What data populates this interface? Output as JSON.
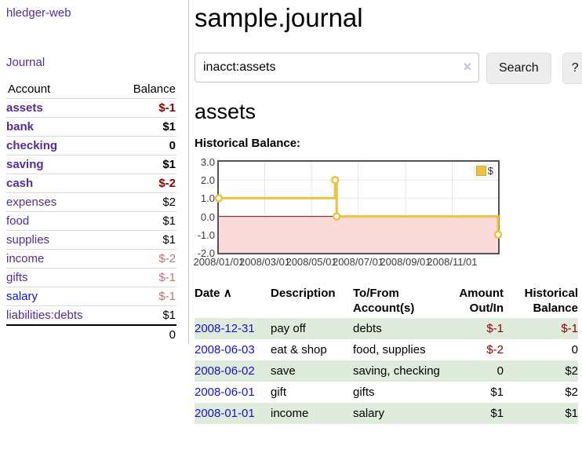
{
  "app": {
    "title": "hledger-web",
    "accent_purple": "#542d96",
    "link_blue": "#1313d2",
    "negative_red": "#8b0000",
    "dimmed_negative_red": "#b87474",
    "row_stripe_green": "#dfecdb"
  },
  "sidebar": {
    "journal_link": "Journal",
    "accounts_table": {
      "account_header": "Account",
      "balance_header": "Balance",
      "rows": [
        {
          "name": "assets",
          "balance": "$-1"
        },
        {
          "name": "bank",
          "balance": "$1"
        },
        {
          "name": "checking",
          "balance": "0"
        },
        {
          "name": "saving",
          "balance": "$1"
        },
        {
          "name": "cash",
          "balance": "$-2"
        },
        {
          "name": "expenses",
          "balance": "$2"
        },
        {
          "name": "food",
          "balance": "$1"
        },
        {
          "name": "supplies",
          "balance": "$1"
        },
        {
          "name": "income",
          "balance": "$-2"
        },
        {
          "name": "gifts",
          "balance": "$-1"
        },
        {
          "name": "salary",
          "balance": "$-1"
        },
        {
          "name": "liabilities:debts",
          "balance": "$1"
        }
      ],
      "total": "0"
    }
  },
  "main": {
    "title": "sample.journal",
    "search": {
      "value": "inacct:assets",
      "clear_icon": "×",
      "search_button": "Search",
      "help_button": "?"
    },
    "account_heading": "assets",
    "chart_title": "Historical Balance:"
  },
  "chart_data": {
    "type": "line",
    "step": true,
    "title": "Historical Balance",
    "series": [
      {
        "name": "$",
        "color": "#EDC240",
        "points": [
          {
            "date": "2008-01-01",
            "day": 0,
            "value": 1
          },
          {
            "date": "2008-06-01",
            "day": 152,
            "value": 2
          },
          {
            "date": "2008-06-03",
            "day": 154,
            "value": 0
          },
          {
            "date": "2008-12-31",
            "day": 365,
            "value": -1
          }
        ]
      }
    ],
    "ylim": [
      -2.0,
      3.0
    ],
    "yticks": [
      "3.0",
      "2.0",
      "1.0",
      "0.0",
      "-1.0",
      "-2.0"
    ],
    "xticks": [
      {
        "label": "2008/01/01",
        "day": 0
      },
      {
        "label": "2008/03/01",
        "day": 60
      },
      {
        "label": "2008/05/01",
        "day": 121
      },
      {
        "label": "2008/07/01",
        "day": 182
      },
      {
        "label": "2008/09/01",
        "day": 244
      },
      {
        "label": "2008/11/01",
        "day": 305
      }
    ],
    "x_span_days": 365,
    "legend": {
      "label": "$",
      "position": "top-right"
    },
    "grid": true,
    "colors": {
      "grid": "#e6e6e6",
      "plot_border": "#545454",
      "negative_region": "#fbdada",
      "zero_line": "#990000",
      "marker_fill": "#ffffff"
    }
  },
  "register": {
    "headers": {
      "date": "Date",
      "sort_indicator": "∧",
      "description": "Description",
      "accounts": "To/From Account(s)",
      "amount": "Amount Out/In",
      "balance": "Historical Balance"
    },
    "rows": [
      {
        "date": "2008-12-31",
        "description": "pay off",
        "accounts": "debts",
        "amount": "$-1",
        "balance": "$-1"
      },
      {
        "date": "2008-06-03",
        "description": "eat & shop",
        "accounts": "food, supplies",
        "amount": "$-2",
        "balance": "0"
      },
      {
        "date": "2008-06-02",
        "description": "save",
        "accounts": "saving, checking",
        "amount": "0",
        "balance": "$2"
      },
      {
        "date": "2008-06-01",
        "description": "gift",
        "accounts": "gifts",
        "amount": "$1",
        "balance": "$2"
      },
      {
        "date": "2008-01-01",
        "description": "income",
        "accounts": "salary",
        "amount": "$1",
        "balance": "$1"
      }
    ]
  }
}
